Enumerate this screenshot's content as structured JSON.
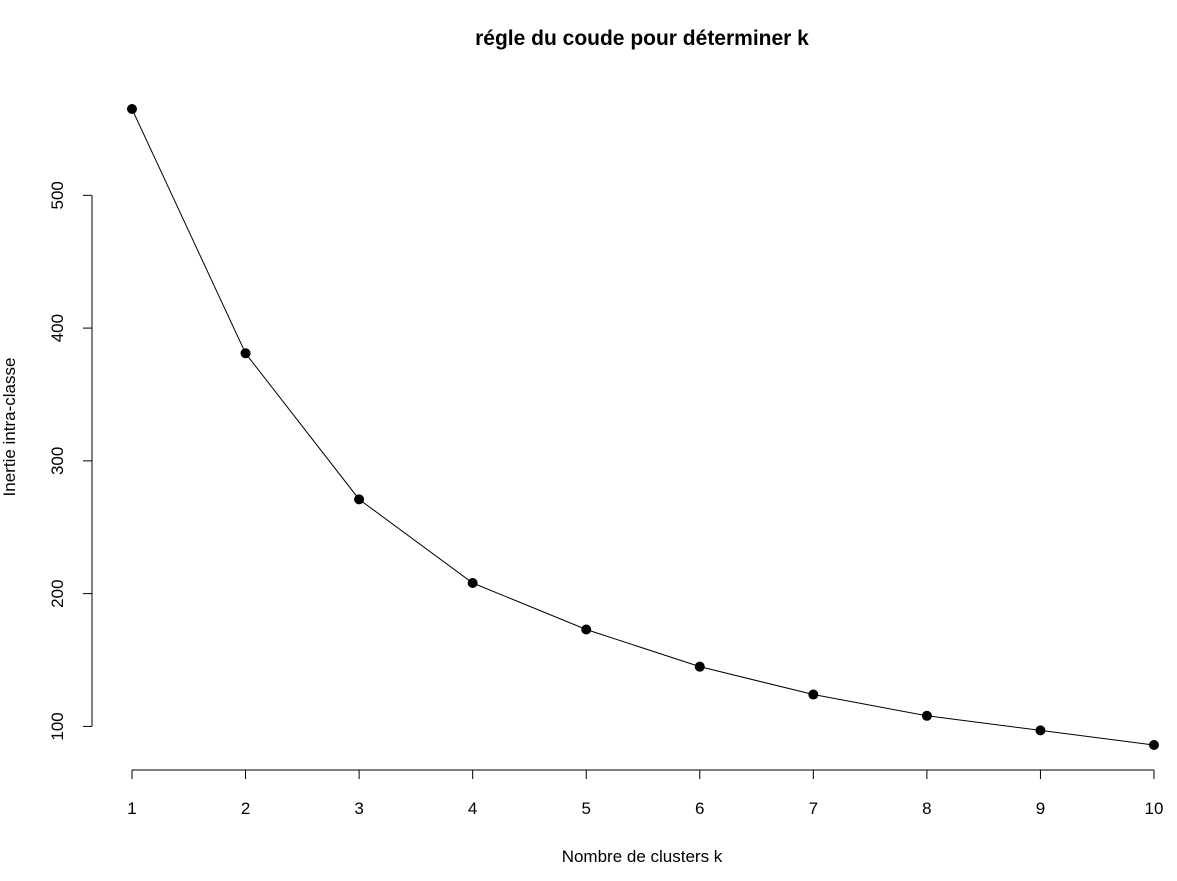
{
  "chart_data": {
    "type": "line",
    "title": "régle du coude pour déterminer k",
    "xlabel": "Nombre de clusters k",
    "ylabel": "Inertie intra-classe",
    "x": [
      1,
      2,
      3,
      4,
      5,
      6,
      7,
      8,
      9,
      10
    ],
    "series": [
      {
        "values": [
          565,
          381,
          271,
          208,
          173,
          145,
          124,
          108,
          97,
          86
        ]
      }
    ],
    "xticks": [
      "1",
      "2",
      "3",
      "4",
      "5",
      "6",
      "7",
      "8",
      "9",
      "10"
    ],
    "yticks": [
      "100",
      "200",
      "300",
      "400",
      "500"
    ],
    "xlim": [
      1,
      10
    ],
    "ylim": [
      86,
      565
    ],
    "grid": false,
    "marker": "filled-circle",
    "line_color": "#000000",
    "marker_color": "#000000"
  }
}
